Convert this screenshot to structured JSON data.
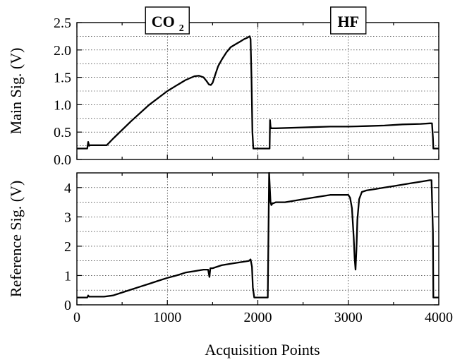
{
  "chart_data": [
    {
      "id": "top",
      "type": "line",
      "title": "",
      "xlabel": "",
      "ylabel": "Main Sig. (V)",
      "xlim": [
        0,
        4000
      ],
      "ylim": [
        0,
        2.5
      ],
      "x_ticks": [
        0,
        1000,
        2000,
        3000,
        4000
      ],
      "y_ticks": [
        0.0,
        0.5,
        1.0,
        1.5,
        2.0,
        2.5
      ],
      "y_tick_labels": [
        "0.0",
        "0.5",
        "1.0",
        "1.5",
        "2.0",
        "2.5"
      ],
      "x_tick_labels_visible": false,
      "grid": true,
      "annotations": [
        {
          "text": "CO",
          "subscript": "2",
          "x": 1000
        },
        {
          "text": "HF",
          "x": 3000
        }
      ],
      "series": [
        {
          "x": [
            0,
            115,
            125,
            135,
            145,
            160,
            330,
            400,
            600,
            800,
            1000,
            1100,
            1200,
            1300,
            1350,
            1400,
            1430,
            1460,
            1480,
            1500,
            1530,
            1560,
            1600,
            1650,
            1700,
            1750,
            1800,
            1850,
            1880,
            1910,
            1920,
            1930,
            1940,
            1950,
            1960,
            2120,
            2130,
            2135,
            2140,
            2145,
            2160,
            2200,
            2400,
            2600,
            2800,
            3000,
            3200,
            3400,
            3600,
            3800,
            3900,
            3925,
            3935,
            3940,
            3945,
            4000
          ],
          "y": [
            0.2,
            0.2,
            0.32,
            0.25,
            0.26,
            0.26,
            0.26,
            0.38,
            0.7,
            1.0,
            1.25,
            1.35,
            1.45,
            1.52,
            1.53,
            1.5,
            1.44,
            1.37,
            1.36,
            1.4,
            1.55,
            1.7,
            1.82,
            1.95,
            2.05,
            2.1,
            2.15,
            2.2,
            2.22,
            2.25,
            2.2,
            1.5,
            0.5,
            0.2,
            0.2,
            0.2,
            0.2,
            0.72,
            0.6,
            0.57,
            0.57,
            0.57,
            0.58,
            0.59,
            0.6,
            0.6,
            0.61,
            0.62,
            0.64,
            0.65,
            0.66,
            0.66,
            0.4,
            0.2,
            0.2,
            0.2
          ]
        }
      ]
    },
    {
      "id": "bottom",
      "type": "line",
      "title": "",
      "xlabel": "Acquisition Points",
      "ylabel": "Reference Sig. (V)",
      "xlim": [
        0,
        4000
      ],
      "ylim": [
        0,
        4.5
      ],
      "x_ticks": [
        0,
        1000,
        2000,
        3000,
        4000
      ],
      "x_tick_labels": [
        "0",
        "1000",
        "2000",
        "3000",
        "4000"
      ],
      "y_ticks": [
        0,
        1,
        2,
        3,
        4
      ],
      "y_tick_labels": [
        "0",
        "1",
        "2",
        "3",
        "4"
      ],
      "grid": true,
      "series": [
        {
          "x": [
            0,
            115,
            125,
            135,
            145,
            300,
            400,
            500,
            600,
            700,
            800,
            900,
            1000,
            1100,
            1200,
            1300,
            1400,
            1450,
            1465,
            1475,
            1490,
            1500,
            1600,
            1700,
            1800,
            1900,
            1920,
            1935,
            1945,
            1960,
            2110,
            2118,
            2125,
            2140,
            2150,
            2160,
            2200,
            2300,
            2400,
            2500,
            2600,
            2700,
            2800,
            2900,
            2950,
            3000,
            3020,
            3040,
            3060,
            3070,
            3080,
            3090,
            3100,
            3120,
            3150,
            3200,
            3300,
            3400,
            3500,
            3600,
            3700,
            3800,
            3900,
            3920,
            3935,
            3940,
            3950,
            4000
          ],
          "y": [
            0.25,
            0.25,
            0.32,
            0.28,
            0.28,
            0.28,
            0.32,
            0.42,
            0.52,
            0.62,
            0.72,
            0.82,
            0.92,
            1.0,
            1.1,
            1.15,
            1.2,
            1.2,
            0.95,
            1.25,
            1.25,
            1.25,
            1.35,
            1.4,
            1.45,
            1.5,
            1.55,
            1.3,
            0.6,
            0.25,
            0.25,
            2.5,
            4.5,
            3.5,
            3.4,
            3.45,
            3.5,
            3.5,
            3.55,
            3.6,
            3.65,
            3.7,
            3.75,
            3.75,
            3.75,
            3.75,
            3.65,
            3.3,
            2.3,
            1.6,
            1.2,
            1.9,
            2.9,
            3.6,
            3.85,
            3.9,
            3.95,
            4.0,
            4.05,
            4.1,
            4.15,
            4.2,
            4.25,
            4.25,
            2.5,
            0.25,
            0.25,
            0.25
          ]
        }
      ]
    }
  ]
}
